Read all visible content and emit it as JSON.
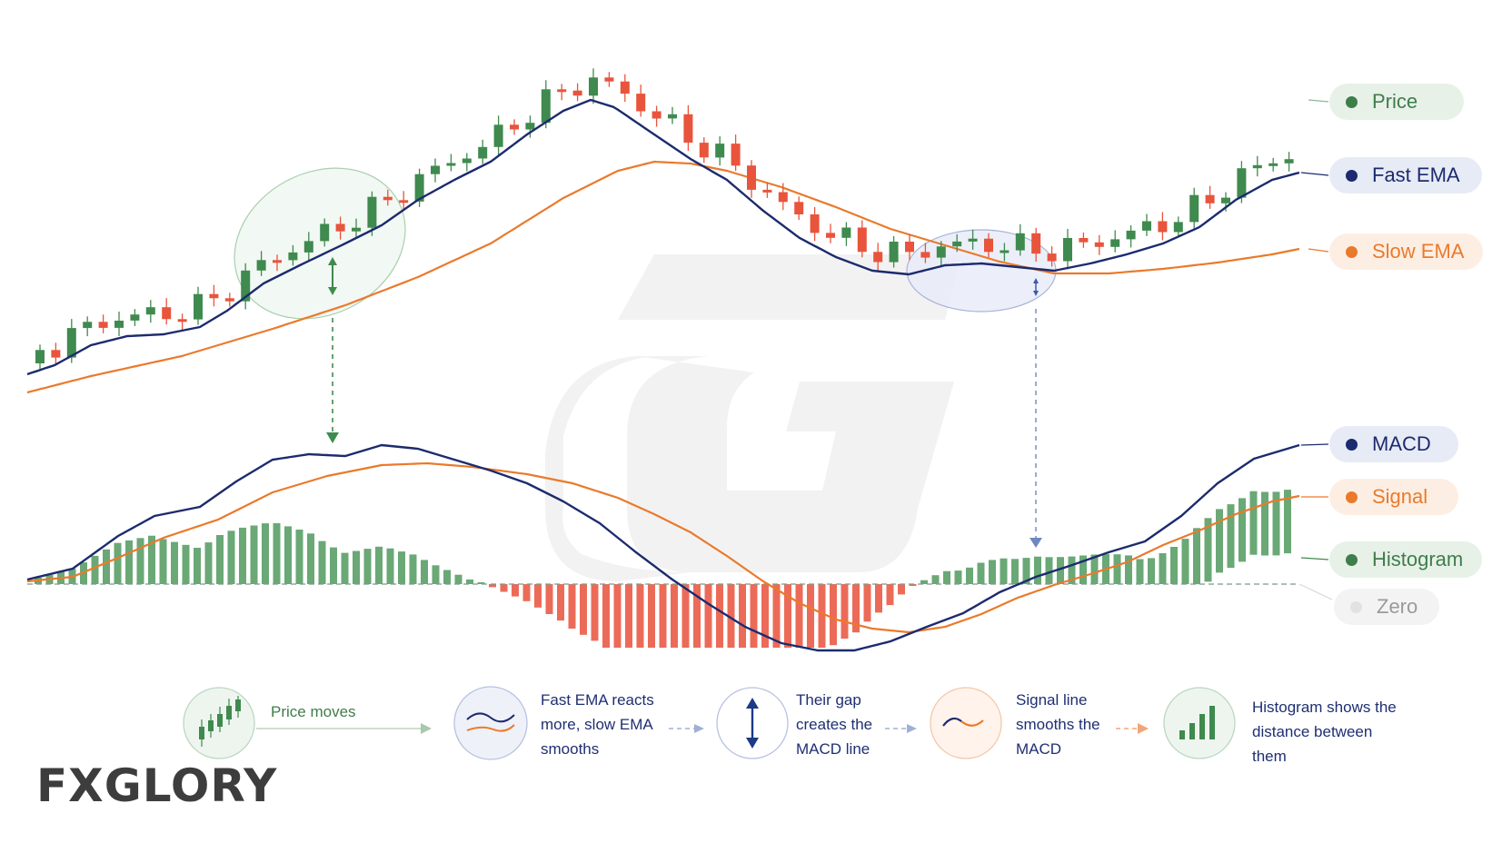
{
  "legend": {
    "price": "Price",
    "fast_ema": "Fast EMA",
    "slow_ema": "Slow EMA",
    "macd": "MACD",
    "signal": "Signal",
    "histogram": "Histogram",
    "zero": "Zero"
  },
  "steps": [
    {
      "icon": "candlestick-icon",
      "text": "Price moves"
    },
    {
      "icon": "ema-lines-icon",
      "text": "Fast EMA reacts more, slow EMA smooths"
    },
    {
      "icon": "vertical-double-arrow-icon",
      "text": "Their gap creates the MACD line"
    },
    {
      "icon": "wave-line-icon",
      "text": "Signal line smooths the MACD"
    },
    {
      "icon": "bar-chart-icon",
      "text": "Histogram shows the distance between them"
    }
  ],
  "brand": {
    "name": "FXGLORY"
  },
  "colors": {
    "bull": "#3f8a4e",
    "bear": "#e8543c",
    "fast_ema": "#1c2b6e",
    "slow_ema": "#ea7a2b",
    "hist_pos": "#6aa876",
    "hist_neg": "#ec6b58"
  }
}
